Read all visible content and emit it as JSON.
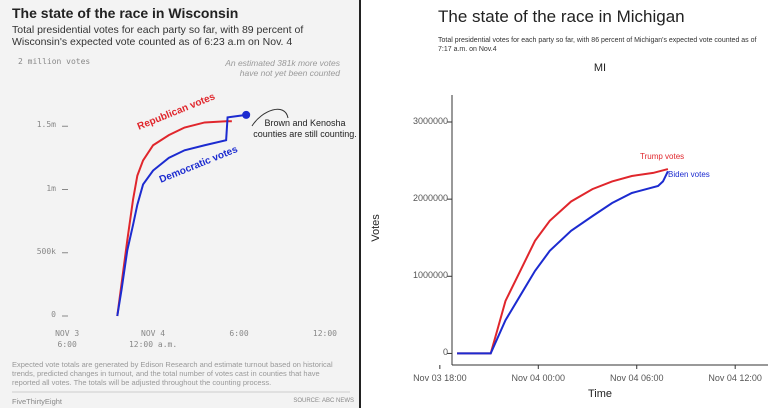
{
  "chart_data": [
    {
      "type": "line",
      "title": "The state of the race in Wisconsin",
      "subtitle": "Total presidential votes for each party so far, with 89 percent of Wisconsin's expected vote counted as of 6:23 a.m on Nov. 4",
      "xlim": [
        17.5,
        37.4
      ],
      "xticks": [
        {
          "value": 18,
          "label": "NOV 3\n6:00"
        },
        {
          "value": 24,
          "label": "NOV 4\n12:00 a.m."
        },
        {
          "value": 30,
          "label": "6:00"
        },
        {
          "value": 36,
          "label": "12:00"
        }
      ],
      "ylim": [
        0,
        2000000
      ],
      "yticks": [
        {
          "value": 0,
          "label": "0"
        },
        {
          "value": 500000,
          "label": "500k"
        },
        {
          "value": 1000000,
          "label": "1m"
        },
        {
          "value": 1500000,
          "label": "1.5m"
        },
        {
          "value": 2000000,
          "label": "2 million votes"
        }
      ],
      "grid": false,
      "series": [
        {
          "name": "Republican votes",
          "color": "#e0262c",
          "x": [
            21.5,
            22.2,
            22.6,
            22.9,
            23.3,
            24,
            25.1,
            26.2,
            27.6,
            29.1,
            29.5
          ],
          "values": [
            0,
            600000,
            920000,
            1110000,
            1230000,
            1350000,
            1430000,
            1490000,
            1530000,
            1540000,
            1540000
          ]
        },
        {
          "name": "Democratic votes",
          "color": "#1c2bd0",
          "end_dot": true,
          "x": [
            21.5,
            21.8,
            22.2,
            22.6,
            22.9,
            23.3,
            24,
            25.1,
            26.2,
            27.6,
            29.1,
            29.2,
            30.5
          ],
          "values": [
            0,
            210000,
            520000,
            720000,
            880000,
            1040000,
            1150000,
            1250000,
            1310000,
            1350000,
            1390000,
            1570000,
            1590000
          ]
        }
      ],
      "annotations": [
        "An estimated 381k more votes have not yet been counted",
        "Brown and Kenosha counties are still counting."
      ],
      "footnote": "Expected vote totals are generated by Edison Research and estimate turnout based on historical trends, predicted changes in turnout, and the total number of votes cast in counties that have reported all votes. The totals will be adjusted throughout the counting process.",
      "credit": "FiveThirtyEight",
      "source": "SOURCE: ABC NEWS"
    },
    {
      "type": "line",
      "title": "The state of the race in Michigan",
      "subtitle": "Total presidential votes for each party so far, with 86 percent of Michigan's expected vote counted as of 7:17 a.m. on Nov.4",
      "panel_title": "MI",
      "xlabel": "Time",
      "ylabel": "Votes",
      "xlim": [
        17.4,
        38.0
      ],
      "xticks": [
        {
          "value": 18,
          "label": "Nov 03 18:00"
        },
        {
          "value": 24,
          "label": "Nov 04 00:00"
        },
        {
          "value": 30,
          "label": "Nov 04 06:00"
        },
        {
          "value": 36,
          "label": "Nov 04 12:00"
        }
      ],
      "ylim": [
        -150000,
        3350000
      ],
      "yticks": [
        0,
        1000000,
        2000000,
        3000000
      ],
      "grid": false,
      "series": [
        {
          "name": "Trump votes",
          "color": "#e0262c",
          "x": [
            19.05,
            21.1,
            21.5,
            22,
            22.9,
            23.8,
            24.7,
            26,
            27.3,
            28.5,
            29.7,
            31,
            31.9
          ],
          "values": [
            0,
            0,
            300000,
            680000,
            1070000,
            1460000,
            1720000,
            1970000,
            2130000,
            2230000,
            2300000,
            2340000,
            2390000
          ]
        },
        {
          "name": "Biden votes",
          "color": "#1c2bd0",
          "x": [
            19.05,
            21.1,
            22,
            22.9,
            23.8,
            24.7,
            26,
            27.3,
            28.5,
            29.7,
            31.3,
            31.6,
            31.9
          ],
          "values": [
            0,
            0,
            430000,
            750000,
            1070000,
            1330000,
            1590000,
            1780000,
            1950000,
            2080000,
            2170000,
            2230000,
            2360000
          ]
        }
      ]
    }
  ]
}
